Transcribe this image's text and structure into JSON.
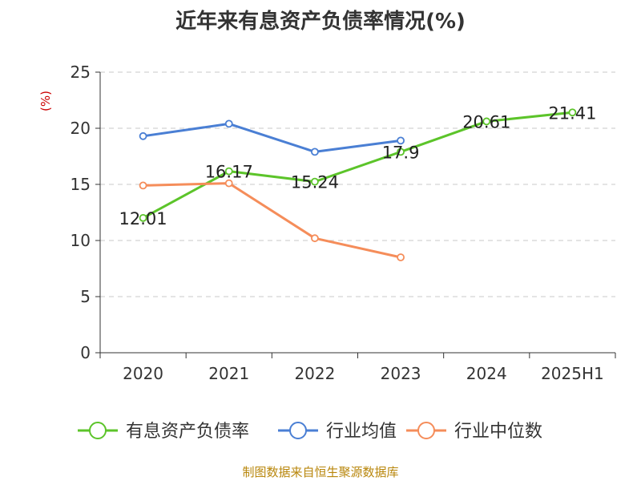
{
  "chart_data": {
    "type": "line",
    "title": "近年来有息资产负债率情况(%)",
    "ylabel": "(%)",
    "xlabel": "",
    "categories": [
      "2020",
      "2021",
      "2022",
      "2023",
      "2024",
      "2025H1"
    ],
    "ylim": [
      0,
      25
    ],
    "yticks": [
      0,
      5,
      10,
      15,
      20,
      25
    ],
    "grid": true,
    "legend_position": "bottom",
    "series": [
      {
        "name": "有息资产负债率",
        "color": "#5cc42a",
        "values": [
          12.01,
          16.17,
          15.24,
          17.9,
          20.61,
          21.41
        ],
        "labels": [
          "12.01",
          "16.17",
          "15.24",
          "17.9",
          "20.61",
          "21.41"
        ]
      },
      {
        "name": "行业均值",
        "color": "#4a7fd4",
        "values": [
          19.3,
          20.4,
          17.9,
          18.9,
          null,
          null
        ]
      },
      {
        "name": "行业中位数",
        "color": "#f58d5a",
        "values": [
          14.9,
          15.1,
          10.2,
          8.5,
          null,
          null
        ]
      }
    ]
  },
  "footer": {
    "source": "制图数据来自恒生聚源数据库"
  }
}
